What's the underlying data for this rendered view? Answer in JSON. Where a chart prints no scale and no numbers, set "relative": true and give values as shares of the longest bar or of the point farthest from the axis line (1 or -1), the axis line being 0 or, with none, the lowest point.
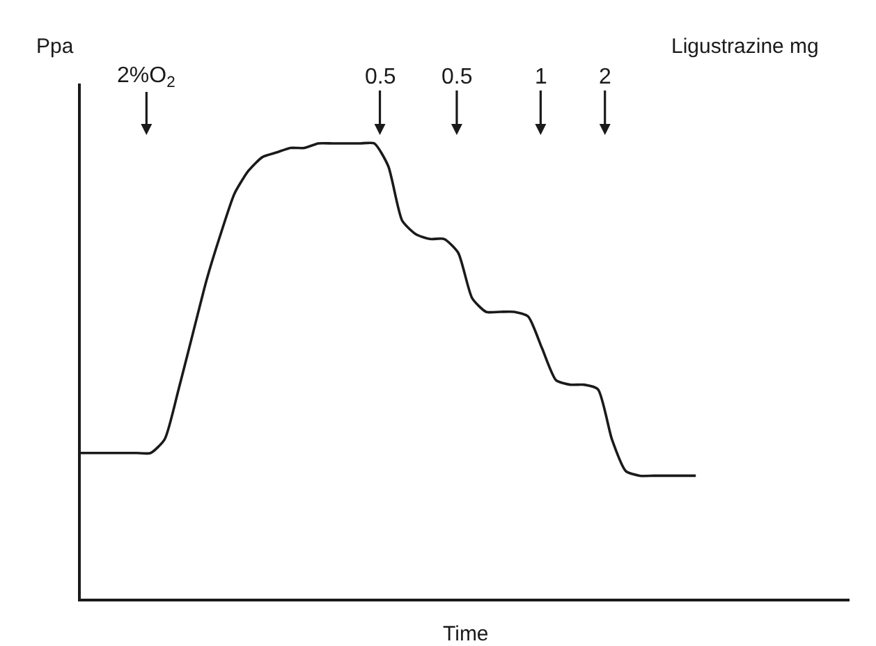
{
  "chart_data": {
    "type": "line",
    "xlabel": "Time",
    "ylabel": "Ppa",
    "relative": true,
    "color": "#1a1a1a",
    "marker": "none",
    "line_style": "solid",
    "categories": [
      null,
      null,
      null,
      null,
      null,
      null,
      null,
      null,
      null,
      null,
      null,
      null,
      null,
      null,
      null,
      null,
      null,
      null,
      null,
      null,
      null,
      null,
      null,
      null,
      null,
      null,
      null,
      null,
      null,
      null,
      null,
      null,
      null,
      null,
      null,
      null,
      null,
      null,
      null,
      null,
      null,
      null,
      null,
      null,
      null,
      null,
      null,
      null,
      null,
      null,
      null,
      null,
      null,
      null,
      null,
      null
    ],
    "values": [
      0.32,
      0.32,
      0.32,
      0.32,
      0.32,
      0.32,
      0.35,
      0.46,
      0.58,
      0.7,
      0.8,
      0.89,
      0.94,
      0.97,
      0.98,
      0.99,
      0.99,
      1.0,
      1.0,
      1.0,
      1.0,
      1.0,
      0.95,
      0.83,
      0.8,
      0.79,
      0.79,
      0.76,
      0.66,
      0.63,
      0.63,
      0.63,
      0.62,
      0.55,
      0.48,
      0.47,
      0.47,
      0.46,
      0.35,
      0.28,
      0.27,
      0.27,
      0.27,
      0.27,
      0.27,
      null,
      null,
      null,
      null,
      null,
      null,
      null,
      null,
      null,
      null,
      null
    ],
    "annotations": [
      "2%O$_{2}$",
      "0.5",
      "0.5",
      "1",
      "2",
      "Ligustrazine mg"
    ]
  }
}
